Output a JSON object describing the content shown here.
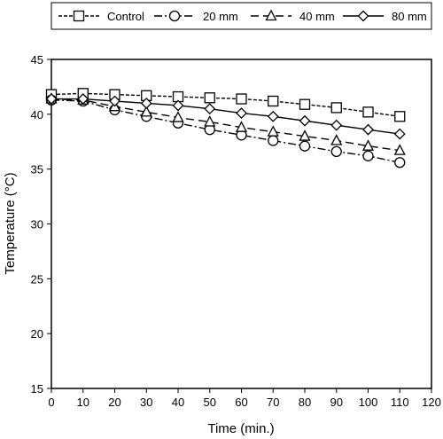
{
  "chart_data": {
    "type": "line",
    "title": "",
    "xlabel": "Time (min.)",
    "ylabel": "Temperature (°C)",
    "xlim": [
      0,
      120
    ],
    "ylim": [
      15,
      45
    ],
    "xticks": [
      0,
      10,
      20,
      30,
      40,
      50,
      60,
      70,
      80,
      90,
      100,
      110,
      120
    ],
    "yticks": [
      15,
      20,
      25,
      30,
      35,
      40,
      45
    ],
    "grid": false,
    "legend_position": "top",
    "x": [
      0,
      10,
      20,
      30,
      40,
      50,
      60,
      70,
      80,
      90,
      100,
      110
    ],
    "series": [
      {
        "name": "Control",
        "marker": "square",
        "line_style": "dashed-fine",
        "values": [
          41.8,
          41.9,
          41.8,
          41.7,
          41.6,
          41.5,
          41.4,
          41.2,
          40.9,
          40.6,
          40.2,
          39.8
        ]
      },
      {
        "name": "20 mm",
        "marker": "circle",
        "line_style": "dash-dot",
        "values": [
          41.3,
          41.2,
          40.4,
          39.8,
          39.2,
          38.6,
          38.1,
          37.6,
          37.1,
          36.6,
          36.2,
          35.6
        ]
      },
      {
        "name": "40 mm",
        "marker": "triangle",
        "line_style": "long-dash",
        "values": [
          41.4,
          41.3,
          40.7,
          40.2,
          39.7,
          39.3,
          38.8,
          38.4,
          38.0,
          37.6,
          37.1,
          36.7
        ]
      },
      {
        "name": "80 mm",
        "marker": "diamond",
        "line_style": "solid",
        "values": [
          41.4,
          41.4,
          41.2,
          41.0,
          40.8,
          40.5,
          40.1,
          39.8,
          39.4,
          39.0,
          38.6,
          38.2
        ]
      }
    ]
  }
}
